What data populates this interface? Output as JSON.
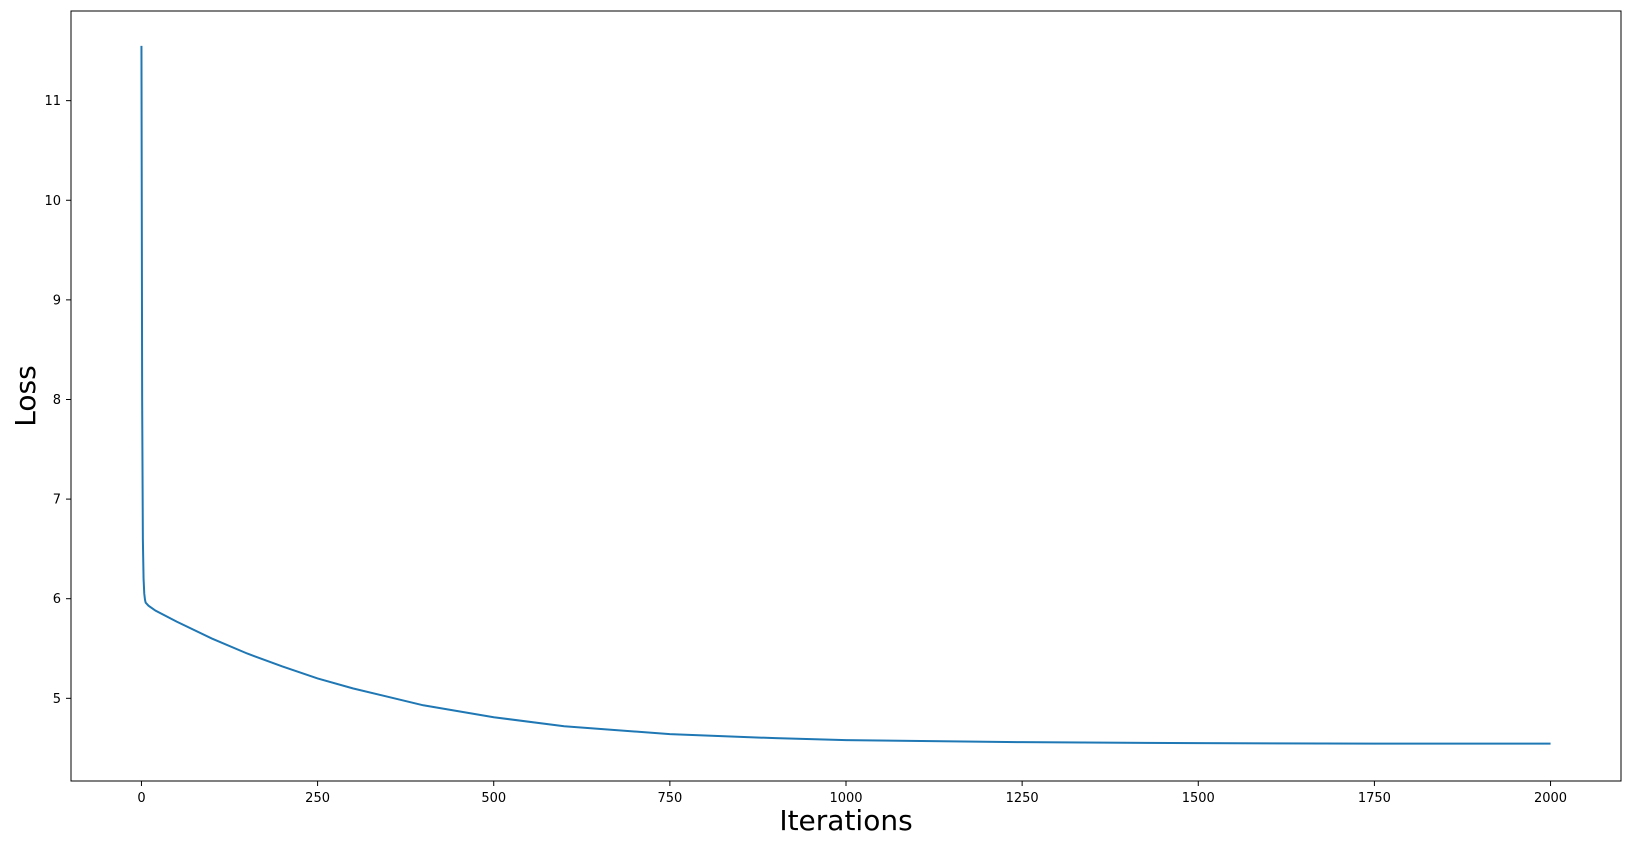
{
  "chart_data": {
    "type": "line",
    "title": "",
    "xlabel": "Iterations",
    "ylabel": "Loss",
    "xlim": [
      -100,
      2100
    ],
    "ylim": [
      4.17,
      11.9
    ],
    "xticks": [
      0,
      250,
      500,
      750,
      1000,
      1250,
      1500,
      1750,
      2000
    ],
    "xtick_labels": [
      "0",
      "250",
      "500",
      "750",
      "1000",
      "1250",
      "1500",
      "1750",
      "2000"
    ],
    "yticks": [
      5,
      6,
      7,
      8,
      9,
      10,
      11
    ],
    "ytick_labels": [
      "5",
      "6",
      "7",
      "8",
      "9",
      "10",
      "11"
    ],
    "grid": false,
    "line_color": "#1f77b4",
    "series": [
      {
        "x": [
          0,
          1,
          2,
          3,
          4,
          5,
          6,
          8,
          10,
          20,
          50,
          100,
          150,
          200,
          250,
          300,
          400,
          500,
          600,
          750,
          900,
          1000,
          1250,
          1500,
          1750,
          2000
        ],
        "y": [
          11.55,
          8.0,
          6.6,
          6.2,
          6.05,
          5.99,
          5.96,
          5.945,
          5.93,
          5.88,
          5.77,
          5.6,
          5.45,
          5.32,
          5.2,
          5.1,
          4.93,
          4.81,
          4.72,
          4.64,
          4.6,
          4.58,
          4.56,
          4.55,
          4.545,
          4.545
        ]
      }
    ]
  }
}
